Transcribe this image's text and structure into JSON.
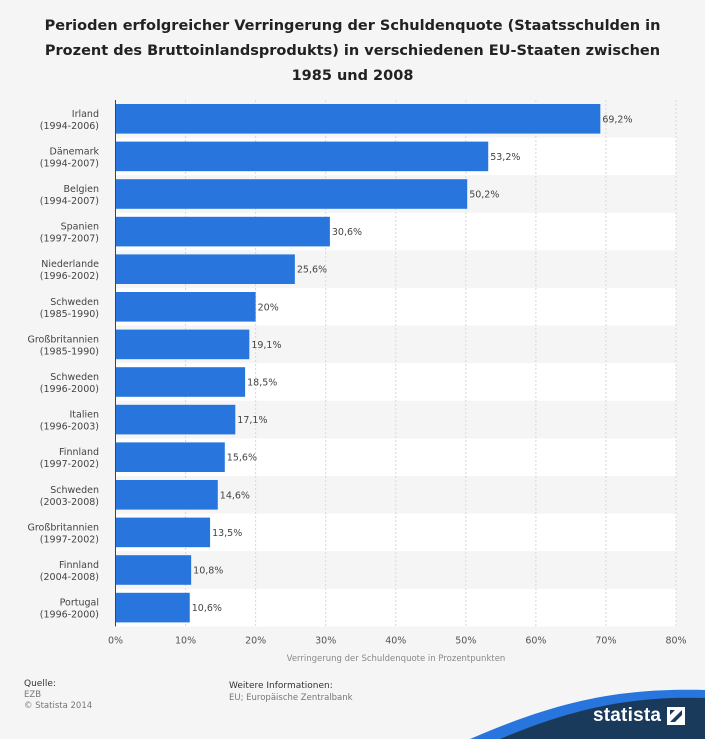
{
  "chart_data": {
    "type": "bar",
    "orientation": "horizontal",
    "title": "Perioden erfolgreicher Verringerung der Schuldenquote (Staatsschulden in Prozent des Bruttoinlandsprodukts) in verschiedenen EU-Staaten zwischen 1985 und 2008",
    "categories": [
      {
        "name": "Irland",
        "period": "(1994-2006)"
      },
      {
        "name": "Dänemark",
        "period": "(1994-2007)"
      },
      {
        "name": "Belgien",
        "period": "(1994-2007)"
      },
      {
        "name": "Spanien",
        "period": "(1997-2007)"
      },
      {
        "name": "Niederlande",
        "period": "(1996-2002)"
      },
      {
        "name": "Schweden",
        "period": "(1985-1990)"
      },
      {
        "name": "Großbritannien",
        "period": "(1985-1990)"
      },
      {
        "name": "Schweden",
        "period": "(1996-2000)"
      },
      {
        "name": "Italien",
        "period": "(1996-2003)"
      },
      {
        "name": "Finnland",
        "period": "(1997-2002)"
      },
      {
        "name": "Schweden",
        "period": "(2003-2008)"
      },
      {
        "name": "Großbritannien",
        "period": "(1997-2002)"
      },
      {
        "name": "Finnland",
        "period": "(2004-2008)"
      },
      {
        "name": "Portugal",
        "period": "(1996-2000)"
      }
    ],
    "values": [
      69.2,
      53.2,
      50.2,
      30.6,
      25.6,
      20,
      19.1,
      18.5,
      17.1,
      15.6,
      14.6,
      13.5,
      10.8,
      10.6
    ],
    "value_labels": [
      "69,2%",
      "53,2%",
      "50,2%",
      "30,6%",
      "25,6%",
      "20%",
      "19,1%",
      "18,5%",
      "17,1%",
      "15,6%",
      "14,6%",
      "13,5%",
      "10,8%",
      "10,6%"
    ],
    "xlim": [
      0,
      80
    ],
    "xticks": [
      0,
      10,
      20,
      30,
      40,
      50,
      60,
      70,
      80
    ],
    "xtick_labels": [
      "0%",
      "10%",
      "20%",
      "30%",
      "40%",
      "50%",
      "60%",
      "70%",
      "80%"
    ],
    "xlabel": "Verringerung der Schuldenquote in Prozentpunkten",
    "ylabel": "",
    "grid": true,
    "bar_color": "#2876dd"
  },
  "footer": {
    "source_heading": "Quelle:",
    "source_lines": [
      "EZB",
      "© Statista 2014"
    ],
    "info_heading": "Weitere Informationen:",
    "info_lines": [
      "EU; Europäische Zentralbank"
    ]
  },
  "brand": {
    "name": "statista",
    "icon": "statista-logo-icon",
    "wave_color": "#1a3a5c",
    "wave_accent": "#2876dd"
  }
}
